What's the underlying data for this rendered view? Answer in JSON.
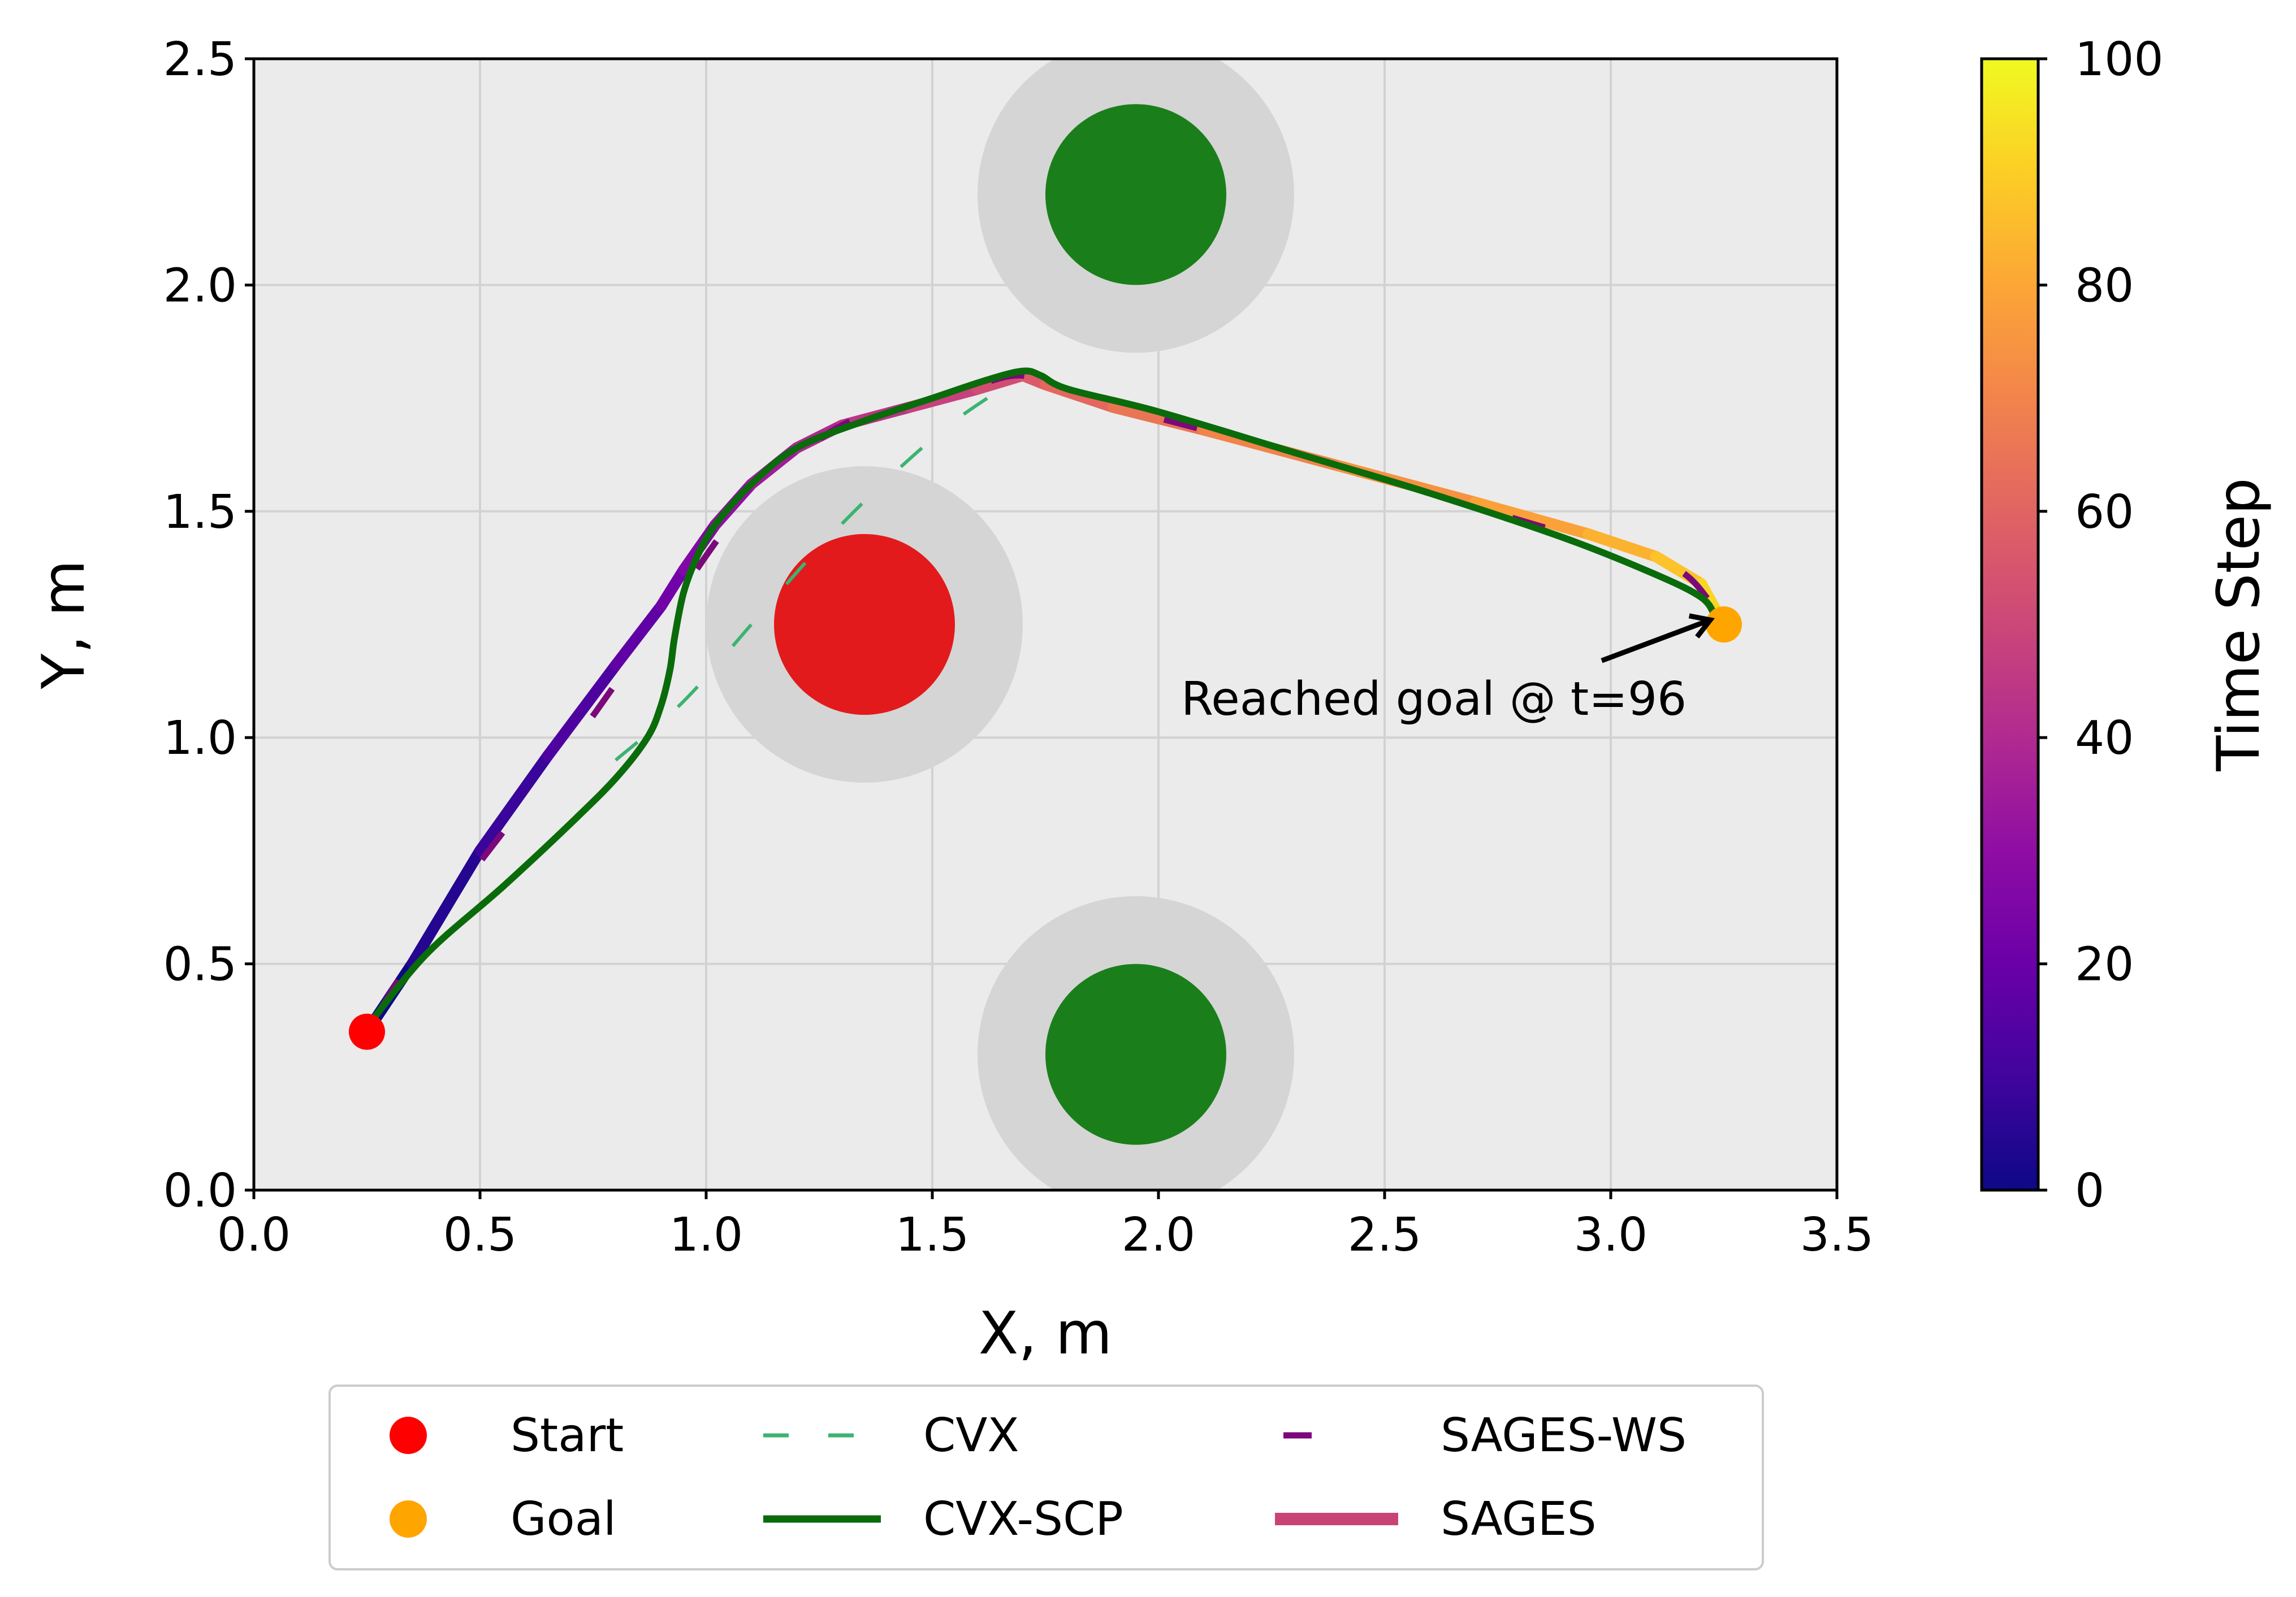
{
  "chart_data": {
    "type": "line",
    "title": "",
    "xlabel": "X, m",
    "ylabel": "Y, m",
    "xlim": [
      0.0,
      3.5
    ],
    "ylim": [
      0.0,
      2.5
    ],
    "x_ticks": [
      "0.0",
      "0.5",
      "1.0",
      "1.5",
      "2.0",
      "2.5",
      "3.0",
      "3.5"
    ],
    "y_ticks": [
      "0.0",
      "0.5",
      "1.0",
      "1.5",
      "2.0",
      "2.5"
    ],
    "grid": true,
    "obstacles": [
      {
        "name": "red-obstacle",
        "center": [
          1.35,
          1.25
        ],
        "radius": 0.2,
        "safety_radius": 0.35,
        "color": "#e31a1c"
      },
      {
        "name": "green-obstacle-top",
        "center": [
          1.95,
          2.2
        ],
        "radius": 0.2,
        "safety_radius": 0.35,
        "color": "#1a7f1a"
      },
      {
        "name": "green-obstacle-bottom",
        "center": [
          1.95,
          0.3
        ],
        "radius": 0.2,
        "safety_radius": 0.35,
        "color": "#1a7f1a"
      }
    ],
    "points": [
      {
        "name": "start",
        "label": "Start",
        "x": 0.25,
        "y": 0.35,
        "color": "#ff0000"
      },
      {
        "name": "goal",
        "label": "Goal",
        "x": 3.25,
        "y": 1.25,
        "color": "#ffa500"
      }
    ],
    "series": [
      {
        "name": "CVX",
        "style": "dashed",
        "color": "#3cb371",
        "x": [
          0.8,
          0.95,
          1.1,
          1.25,
          1.4,
          1.55,
          1.7
        ],
        "y": [
          0.95,
          1.08,
          1.25,
          1.42,
          1.57,
          1.7,
          1.8
        ]
      },
      {
        "name": "CVX-SCP",
        "style": "solid",
        "color": "#0a6b0a",
        "x": [
          0.25,
          0.38,
          0.55,
          0.7,
          0.8,
          0.87,
          0.9,
          0.92,
          0.93,
          0.95,
          0.98,
          1.02,
          1.1,
          1.2,
          1.35,
          1.5,
          1.62,
          1.7,
          1.74,
          1.8,
          2.0,
          2.3,
          2.6,
          2.9,
          3.1,
          3.2,
          3.23
        ],
        "y": [
          0.36,
          0.52,
          0.67,
          0.81,
          0.91,
          1.0,
          1.07,
          1.15,
          1.22,
          1.32,
          1.4,
          1.47,
          1.56,
          1.64,
          1.7,
          1.75,
          1.79,
          1.81,
          1.8,
          1.77,
          1.72,
          1.63,
          1.54,
          1.44,
          1.36,
          1.31,
          1.27
        ]
      },
      {
        "name": "SAGES-WS",
        "style": "dashed",
        "color": "#7a0a7a",
        "x": [
          0.28,
          0.4,
          0.55,
          0.7,
          0.85,
          0.95,
          1.05,
          1.15,
          1.3,
          1.45,
          1.6,
          1.7,
          1.8,
          2.1,
          2.4,
          2.7,
          3.0,
          3.15,
          3.22
        ],
        "y": [
          0.4,
          0.59,
          0.79,
          0.98,
          1.19,
          1.33,
          1.47,
          1.58,
          1.69,
          1.74,
          1.78,
          1.8,
          1.76,
          1.68,
          1.6,
          1.51,
          1.42,
          1.37,
          1.3
        ]
      },
      {
        "name": "SAGES",
        "style": "solid",
        "colormap": "plasma",
        "color": "#c84477",
        "x": [
          0.25,
          0.35,
          0.5,
          0.65,
          0.8,
          0.9,
          0.95,
          1.02,
          1.1,
          1.2,
          1.3,
          1.45,
          1.6,
          1.7,
          1.75,
          1.9,
          2.1,
          2.4,
          2.7,
          2.95,
          3.1,
          3.2,
          3.25
        ],
        "y": [
          0.35,
          0.5,
          0.75,
          0.96,
          1.16,
          1.29,
          1.37,
          1.47,
          1.56,
          1.64,
          1.69,
          1.73,
          1.77,
          1.8,
          1.78,
          1.73,
          1.68,
          1.6,
          1.52,
          1.45,
          1.4,
          1.34,
          1.25
        ]
      }
    ],
    "annotation": {
      "text": "Reached goal @ t=96",
      "target": [
        3.22,
        1.26
      ],
      "text_pos": [
        2.05,
        1.05
      ]
    },
    "colorbar": {
      "label": "Time Step",
      "colormap": "plasma",
      "min": 0,
      "max": 100,
      "ticks": [
        "0",
        "20",
        "40",
        "60",
        "80",
        "100"
      ]
    },
    "legend": {
      "position": "bottom-center",
      "entries": [
        {
          "label": "Start",
          "kind": "marker",
          "color": "#ff0000"
        },
        {
          "label": "Goal",
          "kind": "marker",
          "color": "#ffa500"
        },
        {
          "label": "CVX",
          "kind": "dashed",
          "color": "#3cb371"
        },
        {
          "label": "CVX-SCP",
          "kind": "line",
          "color": "#0a6b0a"
        },
        {
          "label": "SAGES-WS",
          "kind": "dashed",
          "color": "#7a0a7a"
        },
        {
          "label": "SAGES",
          "kind": "thickline",
          "color": "#c84477"
        }
      ]
    }
  }
}
